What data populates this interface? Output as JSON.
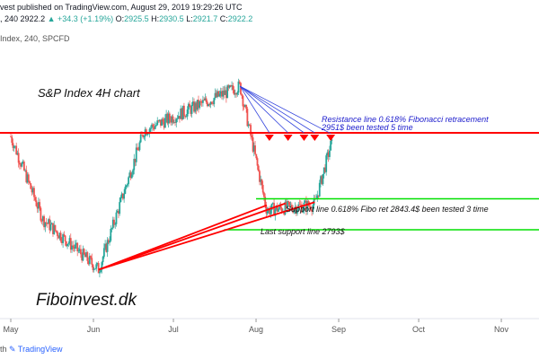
{
  "header": {
    "line1_prefix": "vest",
    "line1_text": "published on TradingView.com, August 29, 2019 19:29:26 UTC",
    "line2_symbol": ", 240",
    "line2_price": "2922.2",
    "line2_change": "+34.3 (+1.19%)",
    "o_label": "O:",
    "o_value": "2925.5",
    "h_label": "H:",
    "h_value": "2930.5",
    "l_label": "L:",
    "l_value": "2921.7",
    "c_label": "C:",
    "c_value": "2922.2",
    "line3": "Index, 240, SPCFD"
  },
  "footer": {
    "prefix": "th",
    "brand": "TradingView"
  },
  "colors": {
    "up": "#26a69a",
    "down": "#ef5350",
    "resistance": "#ff0000",
    "support": "#00e000",
    "fan": "#3344dd",
    "trendline": "#ff0000",
    "annotation": "#1a1acc",
    "axis_text": "#555555"
  },
  "chart_data": {
    "type": "candlestick",
    "title": "S&P Index  4H chart",
    "watermark": "Fiboinvest.dk",
    "x_labels": [
      "May",
      "Jun",
      "Jul",
      "Aug",
      "Sep",
      "Oct",
      "Nov"
    ],
    "resistance": {
      "price": 2951,
      "label_line1": "Resistance line 0.618% Fibonacci retracement",
      "label_line2": "2951$ been tested 5 time"
    },
    "support": {
      "price": 2843.4,
      "label": "Support line 0.618% Fibo ret 2843.4$ been tested 3 time"
    },
    "last_support": {
      "price": 2793,
      "label": "Last support line 2793$"
    },
    "key_points": [
      {
        "date": "2019-05-01",
        "price": 2945
      },
      {
        "date": "2019-05-13",
        "price": 2810
      },
      {
        "date": "2019-06-03",
        "price": 2728
      },
      {
        "date": "2019-06-20",
        "price": 2955
      },
      {
        "date": "2019-07-26",
        "price": 3027
      },
      {
        "date": "2019-08-05",
        "price": 2825
      },
      {
        "date": "2019-08-23",
        "price": 2834
      },
      {
        "date": "2019-08-29",
        "price": 2930.5
      }
    ],
    "last_close": 2922.2
  }
}
